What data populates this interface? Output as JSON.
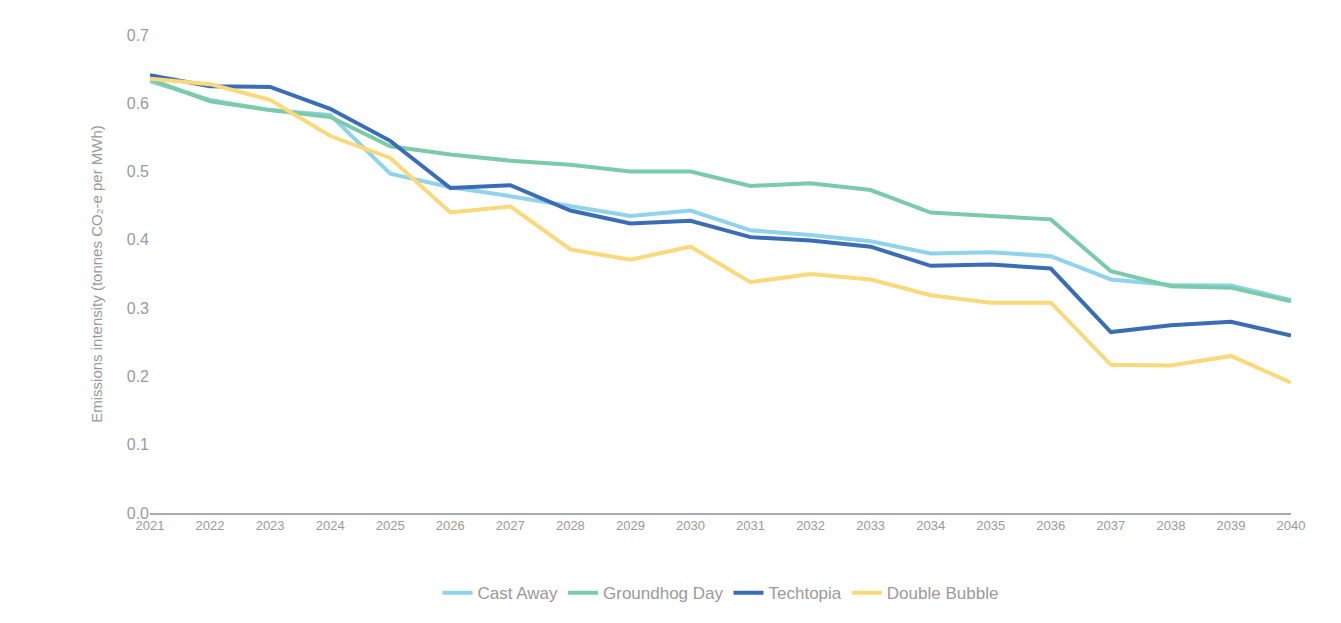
{
  "chart_data": {
    "type": "line",
    "y_label": "Emissions intensity (tonnes CO₂-e per MWh)",
    "categories": [
      "2021",
      "2022",
      "2023",
      "2024",
      "2025",
      "2026",
      "2027",
      "2028",
      "2029",
      "2030",
      "2031",
      "2032",
      "2033",
      "2034",
      "2035",
      "2036",
      "2037",
      "2038",
      "2039",
      "2040"
    ],
    "series": [
      {
        "name": "Cast Away",
        "color": "#8fd3ec",
        "values": [
          0.632,
          0.605,
          0.59,
          0.583,
          0.497,
          0.477,
          0.464,
          0.449,
          0.435,
          0.443,
          0.414,
          0.407,
          0.398,
          0.38,
          0.382,
          0.376,
          0.342,
          0.334,
          0.333,
          0.312
        ]
      },
      {
        "name": "Groundhog Day",
        "color": "#7acbaa",
        "values": [
          0.635,
          0.603,
          0.59,
          0.58,
          0.537,
          0.525,
          0.516,
          0.51,
          0.5,
          0.5,
          0.479,
          0.483,
          0.473,
          0.44,
          0.435,
          0.43,
          0.354,
          0.332,
          0.33,
          0.31
        ]
      },
      {
        "name": "Techtopia",
        "color": "#3a6db5",
        "values": [
          0.641,
          0.625,
          0.624,
          0.592,
          0.545,
          0.476,
          0.48,
          0.443,
          0.424,
          0.428,
          0.404,
          0.399,
          0.39,
          0.362,
          0.364,
          0.358,
          0.265,
          0.275,
          0.28,
          0.26
        ]
      },
      {
        "name": "Double Bubble",
        "color": "#fad97a",
        "values": [
          0.636,
          0.628,
          0.605,
          0.552,
          0.52,
          0.44,
          0.449,
          0.386,
          0.371,
          0.39,
          0.338,
          0.35,
          0.342,
          0.319,
          0.308,
          0.308,
          0.217,
          0.216,
          0.23,
          0.191
        ]
      }
    ],
    "ylim": [
      0,
      0.7
    ],
    "yticks": [
      {
        "value": 0,
        "label": "0.0"
      },
      0.1,
      0.2,
      0.3,
      0.4,
      0.5,
      0.6,
      0.7
    ],
    "grid": false,
    "legend": "bottom"
  }
}
